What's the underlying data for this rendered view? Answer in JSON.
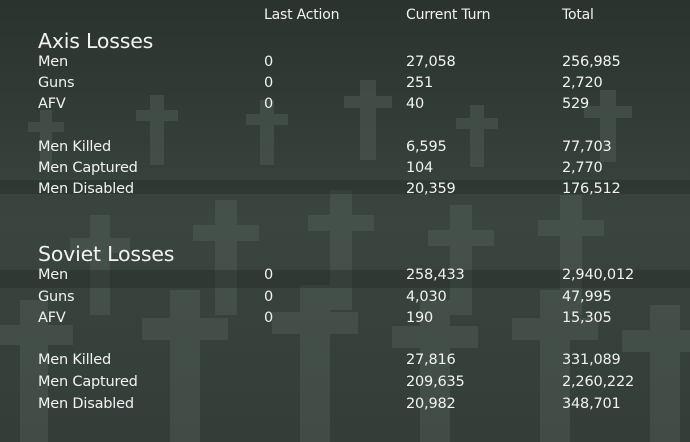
{
  "columns": {
    "last_action": "Last Action",
    "current_turn": "Current Turn",
    "total": "Total"
  },
  "axis": {
    "title": "Axis Losses",
    "rows": [
      {
        "label": "Men",
        "last_action": "0",
        "current_turn": "27,058",
        "total": "256,985"
      },
      {
        "label": "Guns",
        "last_action": "0",
        "current_turn": "251",
        "total": "2,720"
      },
      {
        "label": "AFV",
        "last_action": "0",
        "current_turn": "40",
        "total": "529"
      },
      {
        "label": "Men Killed",
        "last_action": "",
        "current_turn": "6,595",
        "total": "77,703"
      },
      {
        "label": "Men Captured",
        "last_action": "",
        "current_turn": "104",
        "total": "2,770"
      },
      {
        "label": "Men Disabled",
        "last_action": "",
        "current_turn": "20,359",
        "total": "176,512"
      }
    ]
  },
  "soviet": {
    "title": "Soviet Losses",
    "rows": [
      {
        "label": "Men",
        "last_action": "0",
        "current_turn": "258,433",
        "total": "2,940,012"
      },
      {
        "label": "Guns",
        "last_action": "0",
        "current_turn": "4,030",
        "total": "47,995"
      },
      {
        "label": "AFV",
        "last_action": "0",
        "current_turn": "190",
        "total": "15,305"
      },
      {
        "label": "Men Killed",
        "last_action": "",
        "current_turn": "27,816",
        "total": "331,089"
      },
      {
        "label": "Men Captured",
        "last_action": "",
        "current_turn": "209,635",
        "total": "2,260,222"
      },
      {
        "label": "Men Disabled",
        "last_action": "",
        "current_turn": "20,982",
        "total": "348,701"
      }
    ]
  },
  "colors": {
    "background": "#2b342f",
    "text": "#f2f2f2"
  }
}
